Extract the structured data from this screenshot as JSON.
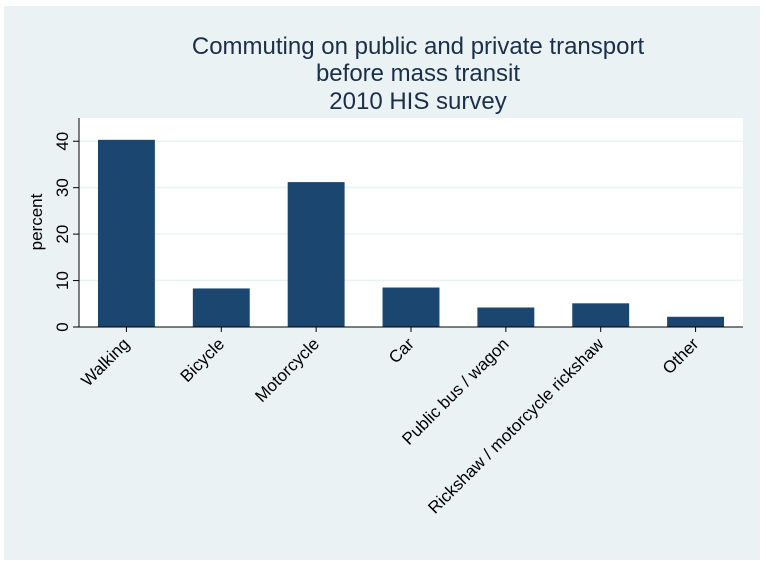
{
  "chart_data": {
    "type": "bar",
    "title_lines": [
      "Commuting on public and private transport",
      "before mass transit",
      "2010 HIS survey"
    ],
    "xlabel": "",
    "ylabel": "percent",
    "categories": [
      "Walking",
      "Bicycle",
      "Motorcycle",
      "Car",
      "Public bus / wagon",
      "Rickshaw / motorcycle rickshaw",
      "Other"
    ],
    "values": [
      40.3,
      8.3,
      31.2,
      8.5,
      4.2,
      5.1,
      2.2
    ],
    "ylim": [
      0,
      45
    ],
    "yticks": [
      0,
      10,
      20,
      30,
      40
    ],
    "grid": true,
    "legend": "none",
    "bar_color": "#1b4670",
    "plot_background": "#ffffff",
    "outer_background": "#eaf2f3",
    "grid_color": "#eaf2f3"
  }
}
